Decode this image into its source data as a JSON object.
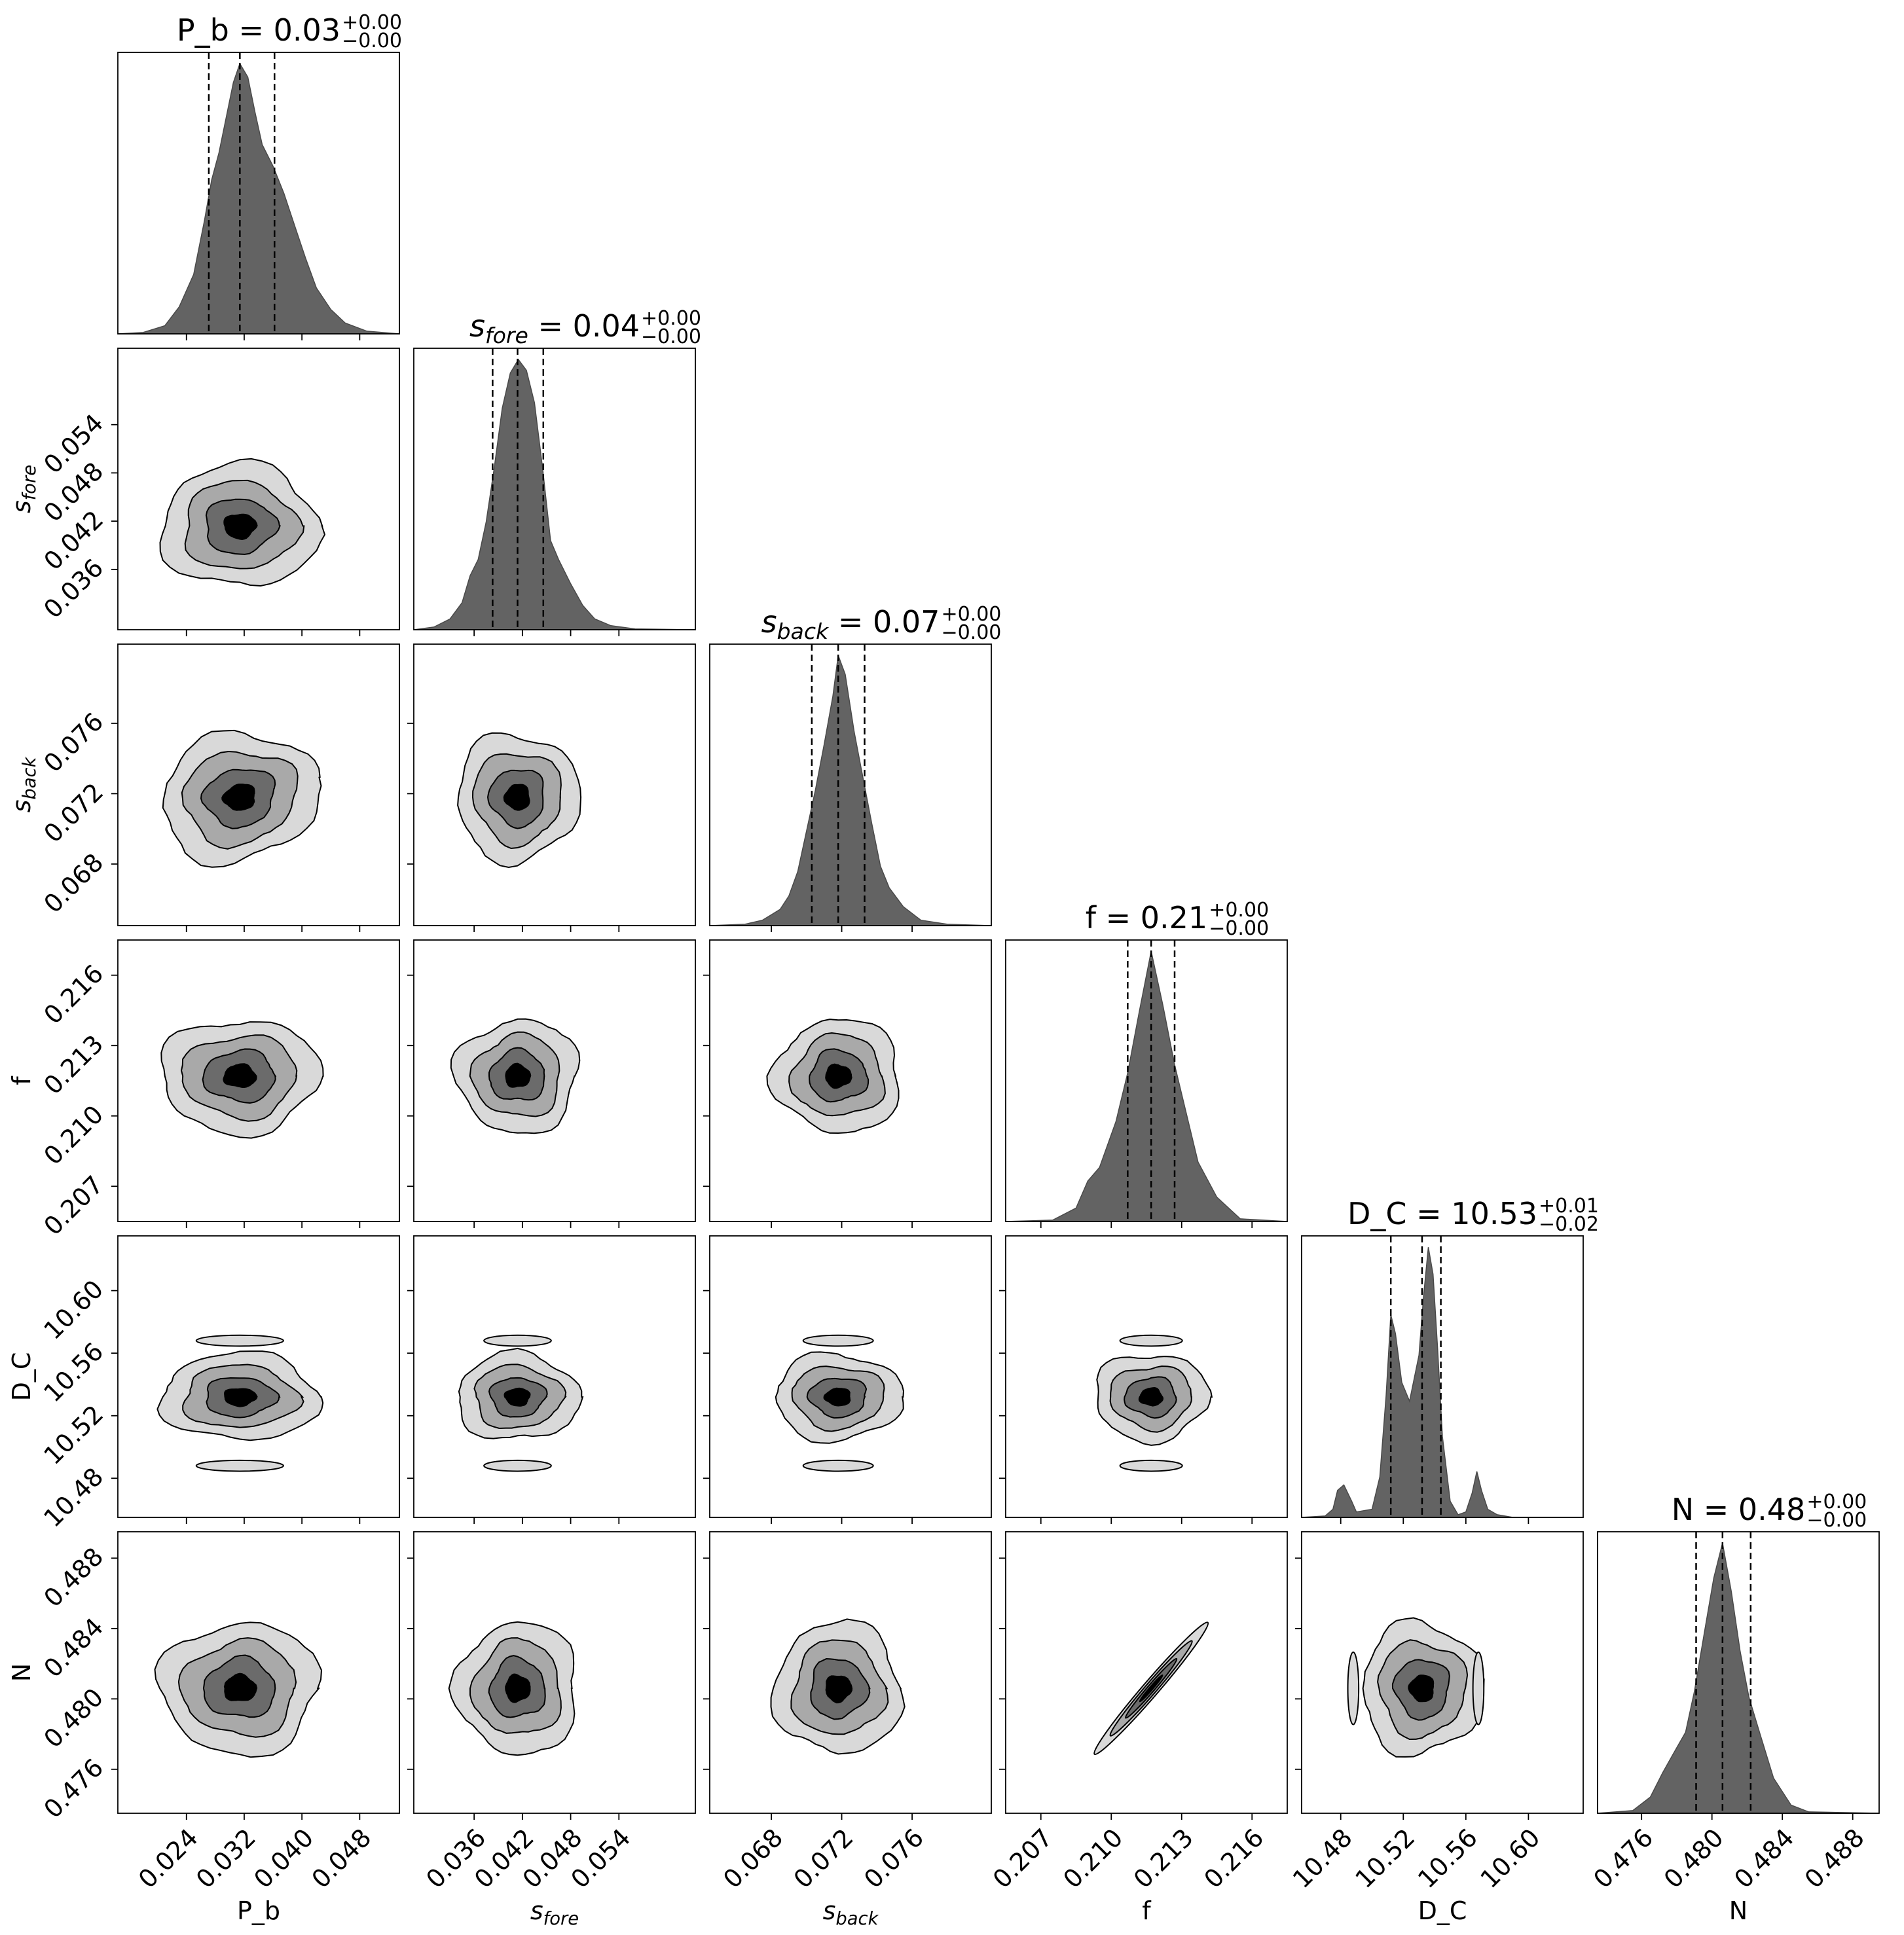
{
  "chart_data": {
    "type": "corner",
    "parameters": [
      {
        "key": "P_b",
        "label": "P_b",
        "math": false,
        "title": "P_b = 0.03",
        "plus": "+0.00",
        "minus": "−0.00",
        "range": [
          0.0145,
          0.0535
        ],
        "ticks": [
          "0.024",
          "0.032",
          "0.040",
          "0.048"
        ],
        "quantiles": [
          0.0271,
          0.0314,
          0.0362
        ],
        "hist_x": [
          0.0145,
          0.018,
          0.021,
          0.023,
          0.025,
          0.0265,
          0.0275,
          0.0285,
          0.0295,
          0.0305,
          0.0314,
          0.0325,
          0.0335,
          0.0345,
          0.036,
          0.0375,
          0.039,
          0.0405,
          0.042,
          0.044,
          0.046,
          0.049,
          0.0535
        ],
        "hist_y": [
          0,
          0.005,
          0.03,
          0.1,
          0.22,
          0.42,
          0.57,
          0.67,
          0.8,
          0.93,
          1.0,
          0.95,
          0.82,
          0.7,
          0.62,
          0.52,
          0.4,
          0.28,
          0.17,
          0.09,
          0.04,
          0.01,
          0
        ]
      },
      {
        "key": "s_fore",
        "label": "s",
        "sub": "fore",
        "math": true,
        "title": "s",
        "title_sub": "fore",
        "title_rest": " = 0.04",
        "plus": "+0.00",
        "minus": "−0.00",
        "range": [
          0.0285,
          0.0635
        ],
        "ticks": [
          "0.036",
          "0.042",
          "0.048",
          "0.054"
        ],
        "quantiles": [
          0.0383,
          0.0414,
          0.0446
        ],
        "hist_x": [
          0.0285,
          0.031,
          0.033,
          0.0345,
          0.0355,
          0.0365,
          0.0375,
          0.0385,
          0.0395,
          0.0405,
          0.0415,
          0.0425,
          0.0435,
          0.0445,
          0.0455,
          0.0465,
          0.048,
          0.0495,
          0.051,
          0.053,
          0.056,
          0.0635
        ],
        "hist_y": [
          0,
          0.01,
          0.04,
          0.1,
          0.2,
          0.26,
          0.4,
          0.6,
          0.82,
          0.95,
          1.0,
          0.96,
          0.84,
          0.6,
          0.33,
          0.26,
          0.17,
          0.09,
          0.04,
          0.015,
          0.003,
          0
        ]
      },
      {
        "key": "s_back",
        "label": "s",
        "sub": "back",
        "math": true,
        "title": "s",
        "title_sub": "back",
        "title_rest": " = 0.07",
        "plus": "+0.00",
        "minus": "−0.00",
        "range": [
          0.0645,
          0.0805
        ],
        "ticks": [
          "0.068",
          "0.072",
          "0.076"
        ],
        "quantiles": [
          0.0703,
          0.0718,
          0.0733
        ],
        "hist_x": [
          0.0645,
          0.0665,
          0.0675,
          0.0685,
          0.069,
          0.0695,
          0.07,
          0.0705,
          0.071,
          0.0715,
          0.0718,
          0.0722,
          0.0727,
          0.0732,
          0.0737,
          0.0742,
          0.0747,
          0.0755,
          0.0765,
          0.078,
          0.0805
        ],
        "hist_y": [
          0,
          0.005,
          0.02,
          0.06,
          0.11,
          0.2,
          0.35,
          0.5,
          0.67,
          0.85,
          1.0,
          0.93,
          0.72,
          0.55,
          0.38,
          0.22,
          0.14,
          0.07,
          0.02,
          0.005,
          0
        ]
      },
      {
        "key": "f",
        "label": "f",
        "math": false,
        "title": "f = 0.21",
        "plus": "+0.00",
        "minus": "−0.00",
        "range": [
          0.2055,
          0.2175
        ],
        "ticks": [
          "0.207",
          "0.210",
          "0.213",
          "0.216"
        ],
        "quantiles": [
          0.2107,
          0.2117,
          0.2127
        ],
        "hist_x": [
          0.2055,
          0.2075,
          0.2085,
          0.209,
          0.2095,
          0.2102,
          0.2107,
          0.2112,
          0.2117,
          0.2122,
          0.2127,
          0.2132,
          0.2137,
          0.2145,
          0.2155,
          0.2175
        ],
        "hist_y": [
          0,
          0.005,
          0.05,
          0.15,
          0.2,
          0.37,
          0.55,
          0.78,
          1.0,
          0.8,
          0.58,
          0.4,
          0.22,
          0.09,
          0.01,
          0
        ]
      },
      {
        "key": "D_C",
        "label": "D_C",
        "math": false,
        "title": "D_C = 10.53",
        "plus": "+0.01",
        "minus": "−0.02",
        "range": [
          10.455,
          10.635
        ],
        "ticks": [
          "10.48",
          "10.52",
          "10.56",
          "10.60"
        ],
        "quantiles": [
          10.512,
          10.532,
          10.544
        ],
        "hist_x": [
          10.455,
          10.47,
          10.475,
          10.478,
          10.482,
          10.487,
          10.49,
          10.5,
          10.505,
          10.509,
          10.512,
          10.515,
          10.519,
          10.524,
          10.53,
          10.533,
          10.536,
          10.539,
          10.542,
          10.545,
          10.55,
          10.555,
          10.56,
          10.564,
          10.567,
          10.57,
          10.574,
          10.58,
          10.59,
          10.635
        ],
        "hist_y": [
          0,
          0.005,
          0.03,
          0.1,
          0.12,
          0.06,
          0.02,
          0.03,
          0.15,
          0.45,
          0.75,
          0.68,
          0.5,
          0.43,
          0.6,
          0.82,
          1.0,
          0.9,
          0.62,
          0.3,
          0.06,
          0.01,
          0.02,
          0.09,
          0.17,
          0.1,
          0.03,
          0.01,
          0.0,
          0
        ]
      },
      {
        "key": "N",
        "label": "N",
        "math": false,
        "title": "N = 0.48",
        "plus": "+0.00",
        "minus": "−0.00",
        "range": [
          0.4735,
          0.4895
        ],
        "ticks": [
          "0.476",
          "0.480",
          "0.484",
          "0.488"
        ],
        "quantiles": [
          0.4791,
          0.4806,
          0.4822
        ],
        "hist_x": [
          0.4735,
          0.4755,
          0.4765,
          0.4772,
          0.4778,
          0.4785,
          0.479,
          0.4796,
          0.4801,
          0.4806,
          0.4811,
          0.4816,
          0.4821,
          0.4827,
          0.4835,
          0.4845,
          0.4855,
          0.4895
        ],
        "hist_y": [
          0,
          0.01,
          0.06,
          0.15,
          0.22,
          0.3,
          0.45,
          0.68,
          0.87,
          1.0,
          0.82,
          0.6,
          0.43,
          0.3,
          0.13,
          0.03,
          0.005,
          0
        ]
      }
    ],
    "contours": {
      "levels": 4,
      "fills": [
        "#d9d9d9",
        "#a9a9a9",
        "#6b6b6b",
        "#000000"
      ],
      "pairs": [
        {
          "row": 1,
          "col": 0,
          "rho": 0.0
        },
        {
          "row": 2,
          "col": 0,
          "rho": -0.35
        },
        {
          "row": 2,
          "col": 1,
          "rho": 0.0
        },
        {
          "row": 3,
          "col": 0,
          "rho": 0.0
        },
        {
          "row": 3,
          "col": 1,
          "rho": 0.0
        },
        {
          "row": 3,
          "col": 2,
          "rho": 0.0
        },
        {
          "row": 4,
          "col": 0,
          "rho": 0.0
        },
        {
          "row": 4,
          "col": 1,
          "rho": 0.0
        },
        {
          "row": 4,
          "col": 2,
          "rho": 0.0
        },
        {
          "row": 4,
          "col": 3,
          "rho": 0.0
        },
        {
          "row": 5,
          "col": 0,
          "rho": 0.0
        },
        {
          "row": 5,
          "col": 1,
          "rho": 0.0
        },
        {
          "row": 5,
          "col": 2,
          "rho": 0.0
        },
        {
          "row": 5,
          "col": 3,
          "rho": 0.97
        },
        {
          "row": 5,
          "col": 4,
          "rho": 0.0
        }
      ]
    }
  }
}
